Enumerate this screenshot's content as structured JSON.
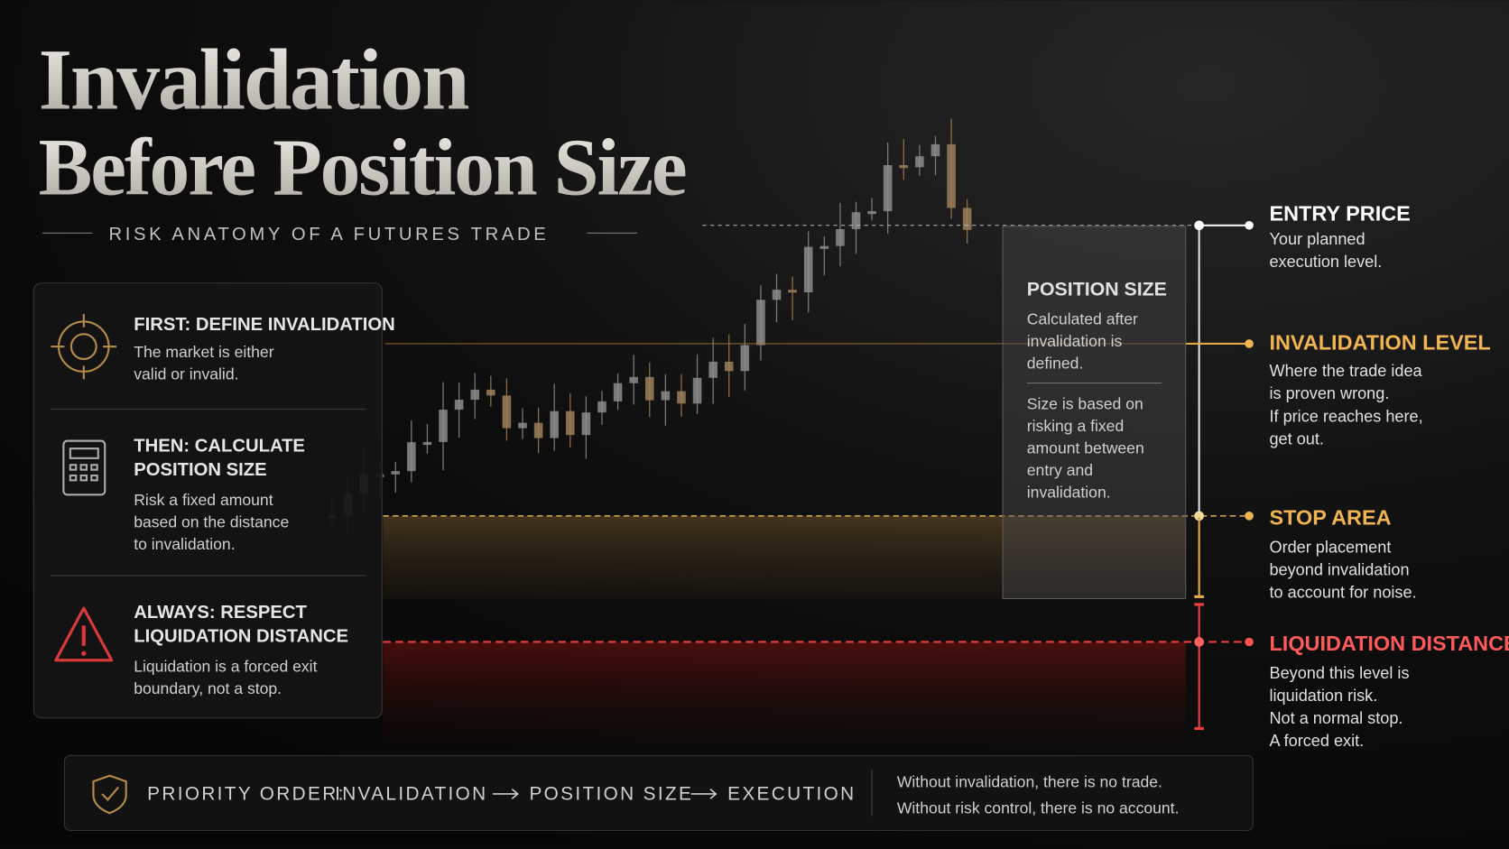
{
  "header": {
    "title": [
      "Invalidation",
      "Before Position Size"
    ],
    "subtitle": "RISK ANATOMY OF A FUTURES TRADE"
  },
  "steps": [
    {
      "heading": [
        "FIRST: DEFINE INVALIDATION"
      ],
      "body": [
        "The market is either",
        "valid or invalid."
      ]
    },
    {
      "heading": [
        "THEN: CALCULATE",
        "POSITION SIZE"
      ],
      "body": [
        "Risk a fixed amount",
        "based on the distance",
        "to invalidation."
      ]
    },
    {
      "heading": [
        "ALWAYS: RESPECT",
        "LIQUIDATION DISTANCE"
      ],
      "body": [
        "Liquidation is a forced exit",
        "boundary, not a stop."
      ]
    }
  ],
  "position_box": {
    "title": "POSITION SIZE",
    "text1": [
      "Calculated after",
      "invalidation is",
      "defined."
    ],
    "text2": [
      "Size is based on",
      "risking a fixed",
      "amount between",
      "entry and",
      "invalidation."
    ]
  },
  "levels": [
    {
      "name": "ENTRY PRICE",
      "text": [
        "Your planned",
        "execution level."
      ]
    },
    {
      "name": "INVALIDATION LEVEL",
      "text": [
        "Where the trade idea",
        "is proven wrong.",
        "If price reaches here,",
        "get out."
      ]
    },
    {
      "name": "STOP AREA",
      "text": [
        "Order placement",
        "beyond invalidation",
        "to account for noise."
      ]
    },
    {
      "name": "LIQUIDATION DISTANCE",
      "text": [
        "Beyond this level is",
        "liquidation risk.",
        "Not a normal stop.",
        "A forced exit."
      ]
    }
  ],
  "footer": {
    "label": "PRIORITY ORDER:",
    "order": [
      "INVALIDATION",
      "POSITION SIZE",
      "EXECUTION"
    ],
    "notes": [
      "Without invalidation, there is no trade.",
      "Without risk control, there is no account."
    ]
  }
}
